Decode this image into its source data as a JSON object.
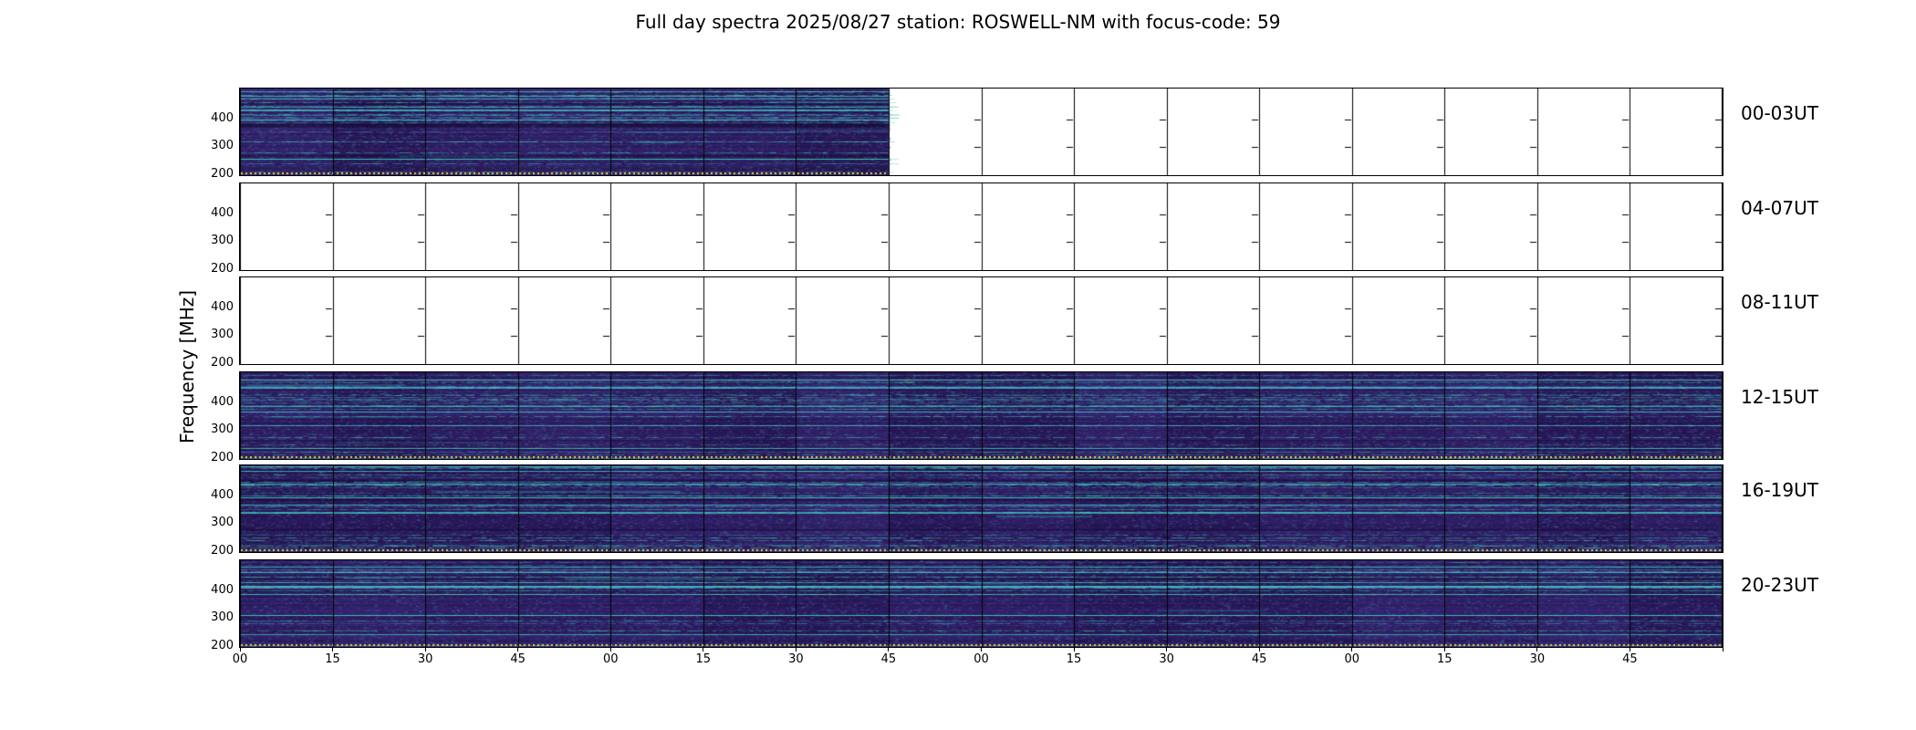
{
  "chart_data": {
    "type": "heatmap",
    "title": "Full day spectra 2025/08/27 station: ROSWELL-NM with focus-code: 59",
    "date": "2025/08/27",
    "station": "ROSWELL-NM",
    "focus_code": "59",
    "ylabel": "Frequency [MHz]",
    "y_ticks": [
      "400",
      "300",
      "200"
    ],
    "y_range_mhz": [
      200,
      510
    ],
    "x_tick_labels": [
      "00",
      "15",
      "30",
      "45",
      "00",
      "15",
      "30",
      "45",
      "00",
      "15",
      "30",
      "45",
      "00",
      "15",
      "30",
      "45"
    ],
    "minutes_per_column": 15,
    "columns_per_panel": 16,
    "hours_per_row": 4,
    "panels": [
      {
        "label": "00-03UT",
        "filled_columns": 7
      },
      {
        "label": "04-07UT",
        "filled_columns": 0
      },
      {
        "label": "08-11UT",
        "filled_columns": 0
      },
      {
        "label": "12-15UT",
        "filled_columns": 16
      },
      {
        "label": "16-19UT",
        "filled_columns": 16
      },
      {
        "label": "20-23UT",
        "filled_columns": 16
      }
    ],
    "legend_position": "none",
    "grid": true,
    "colors": {
      "background": "#ffffff",
      "spectrogram_base": "#2c1c60",
      "spectrogram_dark": "#1f1040",
      "streak_teal": "#3cbebe",
      "streak_green": "#35b779",
      "bottom_dots_yellow": "#e8d84a",
      "grid_line": "#000000"
    }
  }
}
